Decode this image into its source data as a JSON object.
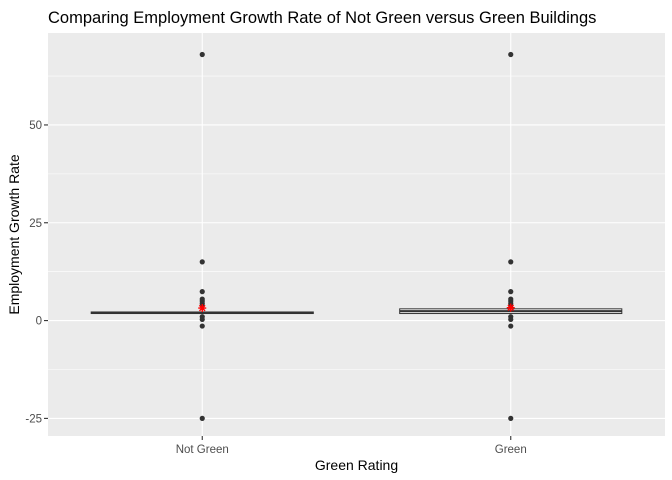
{
  "chart_data": {
    "type": "box",
    "title": "Comparing Employment Growth Rate of Not Green versus Green Buildings",
    "xlabel": "Green Rating",
    "ylabel": "Employment Growth Rate",
    "categories": [
      "Not Green",
      "Green"
    ],
    "y_ticks": [
      -25,
      0,
      25,
      50
    ],
    "ylim": [
      -29.5,
      73.5
    ],
    "grid": true,
    "legend": "none",
    "boxes": [
      {
        "category": "Not Green",
        "q1": 1.8,
        "median": 2.0,
        "q3": 2.2,
        "whisker_low": 1.8,
        "whisker_high": 2.2,
        "mean": 3.2,
        "outliers": [
          68,
          15,
          7.4,
          5.5,
          5,
          4.4,
          3.8,
          1,
          0.3,
          -1.4,
          -25
        ]
      },
      {
        "category": "Green",
        "q1": 1.8,
        "median": 2.4,
        "q3": 3.0,
        "whisker_low": 1.8,
        "whisker_high": 3.0,
        "mean": 3.3,
        "outliers": [
          68,
          15,
          7.4,
          5.5,
          5,
          4.4,
          3.8,
          1,
          0.3,
          -1.4,
          -25
        ]
      }
    ],
    "colors": {
      "panel": "#ebebeb",
      "grid_major": "#ffffff",
      "box_outline": "#333333",
      "box_fill": "#ffffff",
      "outlier": "#333333",
      "mean_marker": "#ff0000"
    }
  }
}
